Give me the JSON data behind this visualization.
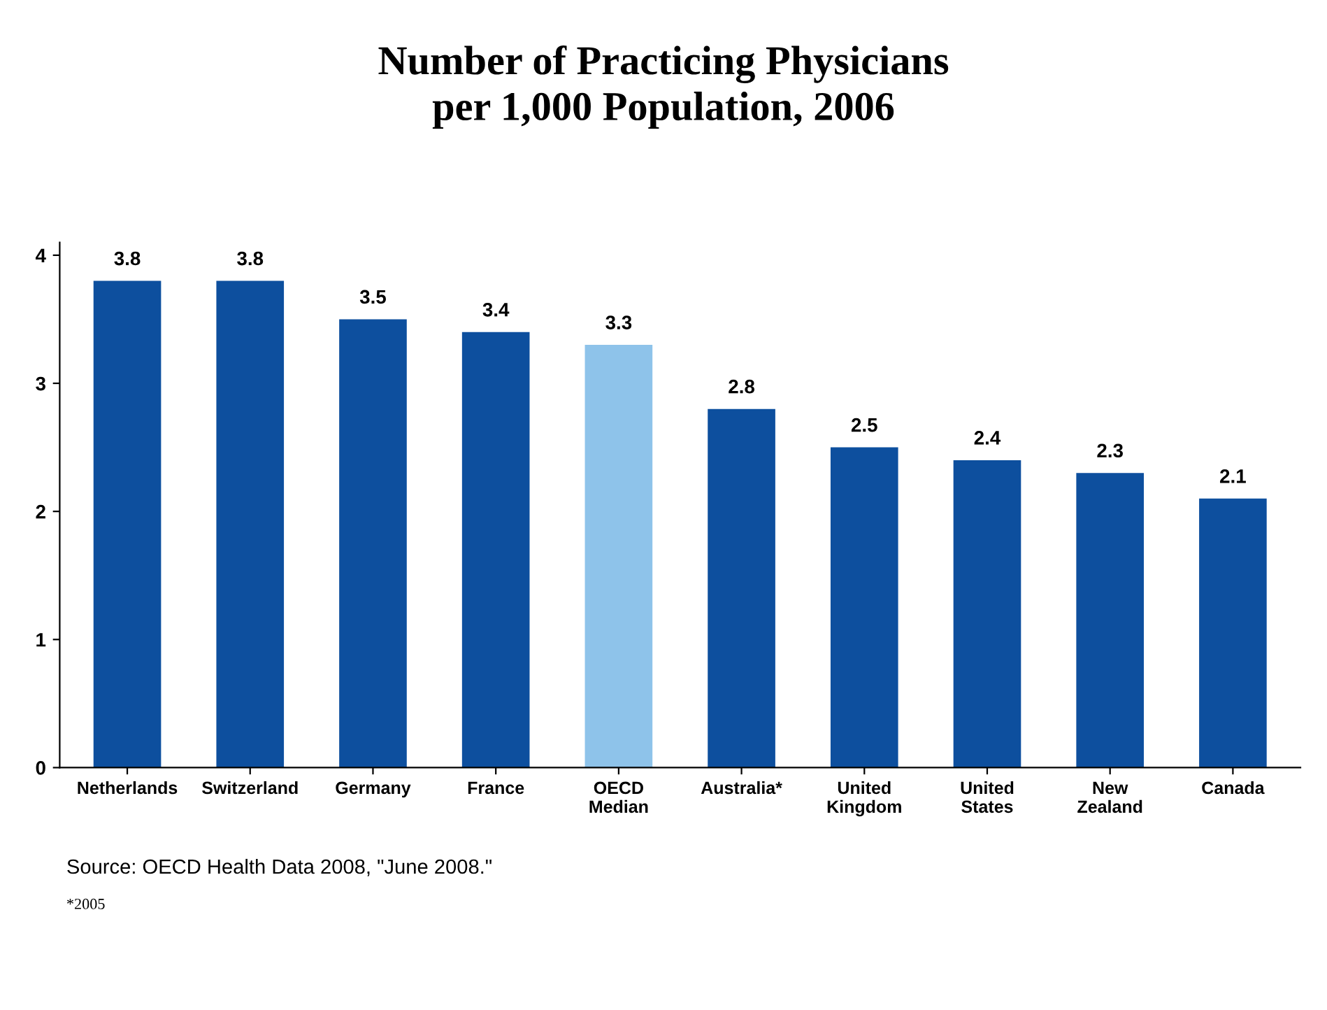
{
  "chart_data": {
    "type": "bar",
    "title": "Number of Practicing Physicians\nper 1,000 Population, 2006",
    "categories": [
      "Netherlands",
      "Switzerland",
      "Germany",
      "France",
      "OECD\nMedian",
      "Australia*",
      "United\nKingdom",
      "United\nStates",
      "New\nZealand",
      "Canada"
    ],
    "values": [
      3.8,
      3.8,
      3.5,
      3.4,
      3.3,
      2.8,
      2.5,
      2.4,
      2.3,
      2.1
    ],
    "colors": [
      "#0d4f9e",
      "#0d4f9e",
      "#0d4f9e",
      "#0d4f9e",
      "#8ec3ea",
      "#0d4f9e",
      "#0d4f9e",
      "#0d4f9e",
      "#0d4f9e",
      "#0d4f9e"
    ],
    "ylim": [
      0,
      4.1
    ],
    "yticks": [
      0,
      1,
      2,
      3,
      4
    ],
    "grid": false,
    "legend": false,
    "data_labels": true,
    "annotations": [
      "Source: OECD Health Data 2008, \"June 2008.\"",
      "*2005"
    ]
  }
}
